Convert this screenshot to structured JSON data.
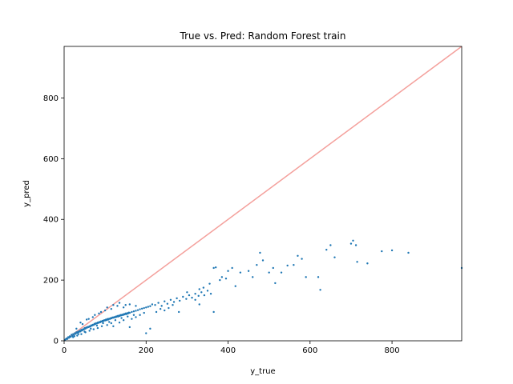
{
  "chart_data": {
    "type": "scatter",
    "title": "True vs. Pred: Random Forest train",
    "xlabel": "y_true",
    "ylabel": "y_pred",
    "xlim": [
      0,
      970
    ],
    "ylim": [
      0,
      970
    ],
    "xticks": [
      0,
      200,
      400,
      600,
      800
    ],
    "yticks": [
      0,
      200,
      400,
      600,
      800
    ],
    "grid": false,
    "point_color": "#1f77b4",
    "reference_line": {
      "from": [
        0,
        0
      ],
      "to": [
        970,
        970
      ],
      "color": "#f4a09c"
    },
    "points": [
      [
        2,
        3
      ],
      [
        4,
        5
      ],
      [
        6,
        8
      ],
      [
        8,
        6
      ],
      [
        10,
        12
      ],
      [
        12,
        10
      ],
      [
        14,
        15
      ],
      [
        16,
        13
      ],
      [
        18,
        20
      ],
      [
        20,
        16
      ],
      [
        22,
        22
      ],
      [
        24,
        19
      ],
      [
        26,
        25
      ],
      [
        28,
        23
      ],
      [
        30,
        28
      ],
      [
        32,
        26
      ],
      [
        34,
        30
      ],
      [
        36,
        29
      ],
      [
        38,
        33
      ],
      [
        40,
        31
      ],
      [
        42,
        36
      ],
      [
        44,
        34
      ],
      [
        46,
        38
      ],
      [
        48,
        37
      ],
      [
        50,
        42
      ],
      [
        52,
        40
      ],
      [
        54,
        44
      ],
      [
        56,
        43
      ],
      [
        58,
        46
      ],
      [
        60,
        45
      ],
      [
        62,
        48
      ],
      [
        64,
        47
      ],
      [
        66,
        51
      ],
      [
        68,
        50
      ],
      [
        70,
        53
      ],
      [
        72,
        52
      ],
      [
        74,
        56
      ],
      [
        76,
        55
      ],
      [
        78,
        58
      ],
      [
        80,
        57
      ],
      [
        82,
        60
      ],
      [
        84,
        59
      ],
      [
        86,
        62
      ],
      [
        88,
        61
      ],
      [
        90,
        64
      ],
      [
        92,
        63
      ],
      [
        94,
        66
      ],
      [
        96,
        65
      ],
      [
        98,
        68
      ],
      [
        100,
        67
      ],
      [
        102,
        70
      ],
      [
        104,
        68
      ],
      [
        106,
        72
      ],
      [
        108,
        70
      ],
      [
        110,
        73
      ],
      [
        112,
        72
      ],
      [
        114,
        75
      ],
      [
        116,
        74
      ],
      [
        118,
        77
      ],
      [
        120,
        76
      ],
      [
        122,
        78
      ],
      [
        124,
        77
      ],
      [
        126,
        80
      ],
      [
        128,
        79
      ],
      [
        130,
        82
      ],
      [
        132,
        80
      ],
      [
        134,
        83
      ],
      [
        136,
        82
      ],
      [
        138,
        85
      ],
      [
        140,
        84
      ],
      [
        142,
        86
      ],
      [
        144,
        85
      ],
      [
        146,
        88
      ],
      [
        148,
        87
      ],
      [
        150,
        90
      ],
      [
        152,
        88
      ],
      [
        154,
        91
      ],
      [
        156,
        90
      ],
      [
        158,
        93
      ],
      [
        160,
        92
      ],
      [
        165,
        95
      ],
      [
        170,
        97
      ],
      [
        175,
        99
      ],
      [
        180,
        101
      ],
      [
        185,
        104
      ],
      [
        190,
        106
      ],
      [
        195,
        108
      ],
      [
        200,
        110
      ],
      [
        205,
        112
      ],
      [
        210,
        114
      ],
      [
        30,
        40
      ],
      [
        45,
        55
      ],
      [
        60,
        72
      ],
      [
        75,
        85
      ],
      [
        90,
        95
      ],
      [
        105,
        110
      ],
      [
        120,
        118
      ],
      [
        135,
        125
      ],
      [
        150,
        118
      ],
      [
        25,
        15
      ],
      [
        35,
        22
      ],
      [
        50,
        30
      ],
      [
        65,
        40
      ],
      [
        80,
        50
      ],
      [
        95,
        58
      ],
      [
        110,
        62
      ],
      [
        125,
        68
      ],
      [
        140,
        75
      ],
      [
        155,
        80
      ],
      [
        170,
        85
      ],
      [
        40,
        60
      ],
      [
        55,
        70
      ],
      [
        70,
        78
      ],
      [
        85,
        90
      ],
      [
        100,
        100
      ],
      [
        115,
        105
      ],
      [
        130,
        115
      ],
      [
        145,
        110
      ],
      [
        160,
        120
      ],
      [
        175,
        115
      ],
      [
        215,
        120
      ],
      [
        222,
        118
      ],
      [
        230,
        125
      ],
      [
        238,
        115
      ],
      [
        245,
        130
      ],
      [
        252,
        122
      ],
      [
        260,
        135
      ],
      [
        268,
        128
      ],
      [
        275,
        140
      ],
      [
        282,
        132
      ],
      [
        290,
        145
      ],
      [
        298,
        138
      ],
      [
        305,
        150
      ],
      [
        312,
        142
      ],
      [
        320,
        155
      ],
      [
        328,
        148
      ],
      [
        335,
        160
      ],
      [
        342,
        150
      ],
      [
        350,
        165
      ],
      [
        358,
        155
      ],
      [
        200,
        25
      ],
      [
        210,
        40
      ],
      [
        160,
        45
      ],
      [
        120,
        48
      ],
      [
        365,
        95
      ],
      [
        300,
        160
      ],
      [
        330,
        170
      ],
      [
        340,
        175
      ],
      [
        355,
        188
      ],
      [
        365,
        240
      ],
      [
        370,
        242
      ],
      [
        380,
        200
      ],
      [
        385,
        210
      ],
      [
        395,
        205
      ],
      [
        400,
        230
      ],
      [
        410,
        240
      ],
      [
        418,
        180
      ],
      [
        430,
        225
      ],
      [
        450,
        230
      ],
      [
        460,
        210
      ],
      [
        470,
        250
      ],
      [
        478,
        290
      ],
      [
        485,
        265
      ],
      [
        500,
        225
      ],
      [
        510,
        240
      ],
      [
        515,
        190
      ],
      [
        530,
        225
      ],
      [
        545,
        248
      ],
      [
        560,
        250
      ],
      [
        570,
        280
      ],
      [
        580,
        270
      ],
      [
        590,
        210
      ],
      [
        620,
        210
      ],
      [
        625,
        168
      ],
      [
        640,
        300
      ],
      [
        650,
        315
      ],
      [
        660,
        275
      ],
      [
        700,
        320
      ],
      [
        705,
        330
      ],
      [
        712,
        315
      ],
      [
        715,
        260
      ],
      [
        740,
        255
      ],
      [
        775,
        295
      ],
      [
        800,
        298
      ],
      [
        840,
        290
      ],
      [
        970,
        240
      ],
      [
        330,
        120
      ],
      [
        320,
        135
      ],
      [
        280,
        95
      ],
      [
        255,
        108
      ],
      [
        225,
        95
      ],
      [
        235,
        105
      ],
      [
        245,
        100
      ],
      [
        265,
        118
      ],
      [
        185,
        85
      ],
      [
        195,
        92
      ],
      [
        175,
        78
      ],
      [
        165,
        72
      ],
      [
        145,
        68
      ],
      [
        135,
        60
      ],
      [
        115,
        58
      ],
      [
        105,
        52
      ],
      [
        92,
        48
      ],
      [
        82,
        42
      ],
      [
        72,
        38
      ],
      [
        62,
        33
      ],
      [
        52,
        28
      ],
      [
        42,
        22
      ],
      [
        32,
        17
      ],
      [
        22,
        12
      ]
    ]
  }
}
